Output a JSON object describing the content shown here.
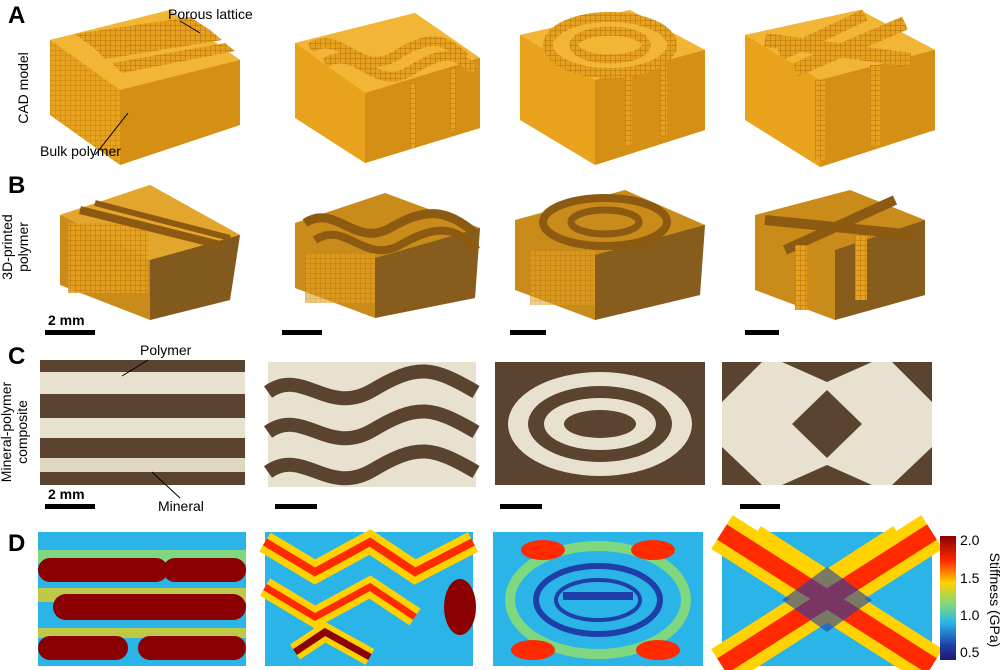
{
  "panels": {
    "a": {
      "letter": "A",
      "row_label": "CAD model"
    },
    "b": {
      "letter": "B",
      "row_label_line1": "3D-printed",
      "row_label_line2": "polymer"
    },
    "c": {
      "letter": "C",
      "row_label_line1": "Mineral-polymer",
      "row_label_line2": "composite"
    },
    "d": {
      "letter": "D"
    }
  },
  "annotations": {
    "porous_lattice": "Porous lattice",
    "bulk_polymer": "Bulk polymer",
    "polymer": "Polymer",
    "mineral": "Mineral"
  },
  "scale": {
    "b_label": "2 mm",
    "c_label": "2 mm"
  },
  "colorbar": {
    "label": "Stiffness (GPa)",
    "ticks": [
      "2.0",
      "1.5",
      "1.0",
      "0.5"
    ],
    "colors": [
      "#8b0000",
      "#ff2a00",
      "#ffd200",
      "#7fd87f",
      "#2ab4e8",
      "#1f3fa8",
      "#1a1a6e"
    ]
  },
  "colors": {
    "amber": "#e9a21c",
    "amber_dark": "#b8720a",
    "lattice": "#c77a0c",
    "mineral": "#e9e1cf",
    "polymer_dark": "#5a4430"
  }
}
